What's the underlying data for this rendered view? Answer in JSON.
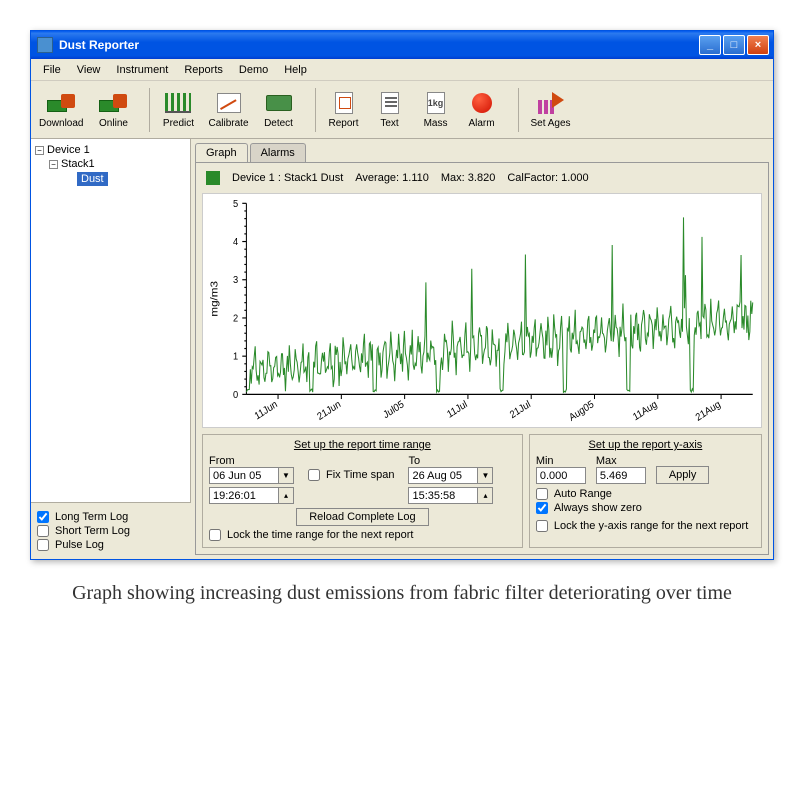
{
  "window": {
    "title": "Dust Reporter",
    "menubar": [
      "File",
      "View",
      "Instrument",
      "Reports",
      "Demo",
      "Help"
    ],
    "toolbar": [
      {
        "name": "download",
        "label": "Download"
      },
      {
        "name": "online",
        "label": "Online"
      },
      {
        "name": "predict",
        "label": "Predict"
      },
      {
        "name": "calibrate",
        "label": "Calibrate"
      },
      {
        "name": "detect",
        "label": "Detect"
      },
      {
        "name": "report",
        "label": "Report"
      },
      {
        "name": "text",
        "label": "Text"
      },
      {
        "name": "mass",
        "label": "Mass",
        "glyph": "1kg"
      },
      {
        "name": "alarm",
        "label": "Alarm"
      },
      {
        "name": "setages",
        "label": "Set Ages"
      }
    ]
  },
  "tree": {
    "device": "Device 1",
    "stack": "Stack1",
    "leaf": "Dust"
  },
  "tabs": {
    "graph": "Graph",
    "alarms": "Alarms"
  },
  "graph_header": {
    "device_label": "Device 1 : Stack1 Dust",
    "avg_label": "Average: 1.110",
    "max_label": "Max: 3.820",
    "cal_label": "CalFactor: 1.000"
  },
  "chart": {
    "type": "line",
    "ylabel": "mg/m3",
    "line_color": "#2a8a2a",
    "axis_color": "#000000",
    "grid_color": "#e0e0e0",
    "background_color": "#ffffff",
    "ylim": [
      0,
      5
    ],
    "ytick_step": 1,
    "xlabels": [
      "11Jun",
      "21Jun",
      "Jul05",
      "11Jul",
      "21Jul",
      "Aug05",
      "11Aug",
      "21Aug"
    ],
    "line_width": 1,
    "label_fontsize": 9
  },
  "time_range": {
    "title": "Set up the report time range",
    "from_label": "From",
    "to_label": "To",
    "from_date": "06 Jun 05",
    "from_time": "19:26:01",
    "to_date": "26 Aug 05",
    "to_time": "15:35:58",
    "fix_span_label": "Fix Time span",
    "reload_btn": "Reload Complete Log",
    "lock_label": "Lock the time range for the next report"
  },
  "yaxis": {
    "title": "Set up the report y-axis",
    "min_label": "Min",
    "max_label": "Max",
    "min_val": "0.000",
    "max_val": "5.469",
    "apply_btn": "Apply",
    "auto_range_label": "Auto Range",
    "always_zero_label": "Always show zero",
    "lock_label": "Lock the  y-axis range for the next report"
  },
  "log_options": {
    "long_term": "Long Term Log",
    "short_term": "Short Term Log",
    "pulse": "Pulse Log"
  },
  "caption": "Graph showing increasing dust emissions from fabric filter deteriorating over time"
}
